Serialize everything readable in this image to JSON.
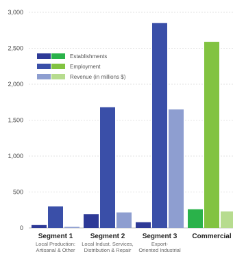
{
  "chart_data": {
    "type": "bar",
    "categories": [
      {
        "name": "Segment 1",
        "sub": [
          "Local Production:",
          "Artisanal & Other"
        ]
      },
      {
        "name": "Segment 2",
        "sub": [
          "Local Indust. Services,",
          "Distribution & Repair"
        ]
      },
      {
        "name": "Segment 3",
        "sub": [
          "Export-",
          "Oriented Industrial"
        ]
      },
      {
        "name": "Commercial",
        "sub": []
      }
    ],
    "series": [
      {
        "name": "Establishments",
        "values": [
          40,
          190,
          80,
          260
        ]
      },
      {
        "name": "Employment",
        "values": [
          300,
          1680,
          2850,
          2590
        ]
      },
      {
        "name": "Revenue (in millions $)",
        "values": [
          15,
          215,
          1650,
          230
        ]
      }
    ],
    "colors": {
      "industrial": [
        "#2e3a97",
        "#3a4fa8",
        "#8e9ed0"
      ],
      "commercial": [
        "#2ab24a",
        "#82c341",
        "#b7dc8f"
      ]
    },
    "y_ticks": [
      "0",
      "500",
      "1,000",
      "1,500",
      "2,000",
      "2,500",
      "3,000"
    ],
    "ylim": [
      0,
      3000
    ],
    "grid": true,
    "legend_position": "top-left"
  }
}
